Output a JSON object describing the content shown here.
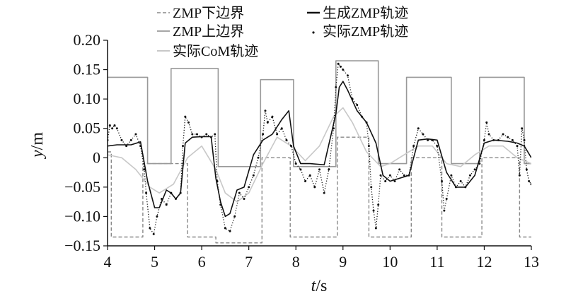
{
  "chart_data": {
    "type": "line",
    "title": "",
    "xlabel_var": "t",
    "xlabel_unit": "/s",
    "ylabel_var": "y",
    "ylabel_unit": "/m",
    "xlim": [
      4,
      13
    ],
    "ylim": [
      -0.15,
      0.2
    ],
    "xticks": [
      "4",
      "5",
      "6",
      "7",
      "8",
      "9",
      "10",
      "11",
      "12",
      "13"
    ],
    "yticks": [
      "0.20",
      "0.15",
      "0.10",
      "0.05",
      "0",
      "−0.05",
      "−0.10",
      "−0.15"
    ],
    "grid": false,
    "legend_position": "top-center",
    "series": [
      {
        "name": "ZMP下边界",
        "style": "dashed",
        "color": "#888888",
        "x": [
          4.0,
          4.08,
          4.08,
          4.75,
          4.75,
          5.7,
          5.7,
          6.3,
          6.3,
          7.28,
          7.28,
          7.88,
          7.88,
          8.88,
          8.88,
          9.55,
          9.55,
          10.45,
          10.45,
          11.1,
          11.1,
          11.95,
          11.95,
          12.75,
          12.75,
          13.0
        ],
        "y": [
          0.01,
          0.01,
          -0.135,
          -0.135,
          -0.01,
          -0.01,
          -0.135,
          -0.135,
          -0.145,
          -0.145,
          0.0,
          0.0,
          -0.135,
          -0.135,
          0.035,
          0.035,
          -0.135,
          -0.135,
          0.0,
          0.0,
          -0.135,
          -0.135,
          0.0,
          0.0,
          -0.135,
          -0.135
        ]
      },
      {
        "name": "ZMP上边界",
        "style": "solid",
        "color": "#999999",
        "x": [
          4.0,
          4.85,
          4.85,
          5.35,
          5.35,
          6.35,
          6.35,
          7.25,
          7.25,
          7.95,
          7.95,
          8.85,
          8.85,
          9.75,
          9.75,
          10.35,
          10.35,
          11.3,
          11.3,
          11.9,
          11.9,
          12.85,
          12.85,
          13.0
        ],
        "y": [
          0.137,
          0.137,
          -0.01,
          -0.01,
          0.152,
          0.152,
          -0.015,
          -0.015,
          0.133,
          0.133,
          -0.015,
          -0.015,
          0.165,
          0.165,
          -0.01,
          -0.01,
          0.137,
          0.137,
          -0.01,
          -0.01,
          0.137,
          0.137,
          -0.01,
          -0.01
        ]
      },
      {
        "name": "实际CoM轨迹",
        "style": "solid",
        "color": "#c8c8c8",
        "x": [
          4.0,
          4.3,
          4.6,
          4.9,
          5.1,
          5.4,
          5.7,
          6.0,
          6.3,
          6.5,
          6.75,
          7.0,
          7.3,
          7.6,
          7.9,
          8.2,
          8.5,
          8.8,
          9.0,
          9.2,
          9.5,
          9.8,
          10.0,
          10.3,
          10.6,
          10.9,
          11.2,
          11.5,
          11.8,
          12.1,
          12.4,
          12.7,
          13.0
        ],
        "y": [
          0.005,
          0.0,
          -0.02,
          -0.05,
          -0.06,
          -0.045,
          0.0,
          0.02,
          -0.02,
          -0.06,
          -0.075,
          -0.06,
          -0.01,
          0.035,
          0.02,
          -0.005,
          0.02,
          0.07,
          0.085,
          0.06,
          0.01,
          -0.015,
          -0.01,
          0.005,
          0.02,
          0.02,
          -0.01,
          -0.015,
          0.005,
          0.02,
          0.02,
          0.0,
          -0.01
        ]
      },
      {
        "name": "生成ZMP轨迹",
        "style": "solid",
        "color": "#111111",
        "x": [
          4.0,
          4.2,
          4.5,
          4.7,
          4.85,
          5.0,
          5.1,
          5.25,
          5.35,
          5.45,
          5.55,
          5.65,
          5.8,
          6.0,
          6.2,
          6.3,
          6.4,
          6.5,
          6.6,
          6.75,
          6.9,
          7.1,
          7.3,
          7.5,
          7.7,
          7.85,
          7.95,
          8.1,
          8.3,
          8.6,
          8.85,
          8.92,
          9.0,
          9.1,
          9.3,
          9.5,
          9.7,
          9.85,
          10.0,
          10.2,
          10.4,
          10.6,
          10.8,
          11.0,
          11.2,
          11.4,
          11.6,
          11.8,
          12.0,
          12.2,
          12.5,
          12.7,
          12.85,
          13.0
        ],
        "y": [
          0.02,
          0.022,
          0.022,
          0.027,
          -0.04,
          -0.085,
          -0.085,
          -0.055,
          -0.06,
          -0.07,
          -0.06,
          0.025,
          0.035,
          0.036,
          0.036,
          -0.035,
          -0.075,
          -0.1,
          -0.095,
          -0.055,
          -0.05,
          0.005,
          0.03,
          0.04,
          0.065,
          0.08,
          0.02,
          -0.01,
          -0.01,
          -0.012,
          0.075,
          0.12,
          0.13,
          0.115,
          0.08,
          0.06,
          0.025,
          -0.03,
          -0.04,
          -0.035,
          -0.03,
          0.03,
          0.032,
          0.03,
          -0.025,
          -0.05,
          -0.05,
          -0.03,
          0.025,
          0.03,
          0.028,
          0.025,
          0.02,
          0.0
        ]
      },
      {
        "name": "实际ZMP轨迹",
        "style": "dotted",
        "color": "#111111",
        "x": [
          4.0,
          4.05,
          4.1,
          4.15,
          4.2,
          4.3,
          4.4,
          4.5,
          4.6,
          4.7,
          4.78,
          4.82,
          4.9,
          4.98,
          5.05,
          5.15,
          5.25,
          5.35,
          5.45,
          5.55,
          5.6,
          5.65,
          5.72,
          5.8,
          5.9,
          6.0,
          6.1,
          6.2,
          6.28,
          6.33,
          6.4,
          6.5,
          6.6,
          6.7,
          6.8,
          6.9,
          7.0,
          7.1,
          7.2,
          7.3,
          7.35,
          7.4,
          7.5,
          7.6,
          7.7,
          7.8,
          7.9,
          8.0,
          8.1,
          8.2,
          8.3,
          8.4,
          8.5,
          8.6,
          8.7,
          8.8,
          8.85,
          8.9,
          8.95,
          9.0,
          9.1,
          9.2,
          9.3,
          9.4,
          9.5,
          9.55,
          9.6,
          9.65,
          9.7,
          9.75,
          9.8,
          9.9,
          10.0,
          10.1,
          10.2,
          10.3,
          10.4,
          10.5,
          10.6,
          10.7,
          10.8,
          10.9,
          11.0,
          11.1,
          11.15,
          11.2,
          11.3,
          11.4,
          11.5,
          11.6,
          11.7,
          11.8,
          11.9,
          12.0,
          12.05,
          12.1,
          12.2,
          12.3,
          12.4,
          12.5,
          12.6,
          12.7,
          12.75,
          12.8,
          12.85,
          12.9,
          12.95,
          13.0
        ],
        "y": [
          0.03,
          0.055,
          0.05,
          0.055,
          0.05,
          0.03,
          0.02,
          0.03,
          0.04,
          0.02,
          -0.02,
          -0.06,
          -0.12,
          -0.13,
          -0.1,
          -0.07,
          -0.08,
          -0.06,
          -0.07,
          -0.06,
          0.02,
          0.07,
          0.06,
          0.04,
          0.04,
          0.035,
          0.04,
          0.035,
          0.04,
          -0.04,
          -0.08,
          -0.12,
          -0.125,
          -0.1,
          -0.06,
          -0.07,
          -0.05,
          -0.03,
          0.0,
          0.04,
          0.08,
          0.06,
          0.07,
          0.04,
          0.05,
          0.03,
          0.02,
          -0.01,
          -0.02,
          -0.04,
          -0.03,
          -0.05,
          -0.02,
          -0.06,
          -0.02,
          0.05,
          0.12,
          0.16,
          0.155,
          0.15,
          0.14,
          0.1,
          0.09,
          0.07,
          0.06,
          0.02,
          -0.05,
          -0.09,
          -0.12,
          -0.08,
          -0.03,
          -0.04,
          -0.03,
          -0.04,
          -0.02,
          -0.03,
          -0.03,
          0.02,
          0.05,
          0.04,
          0.03,
          0.03,
          0.02,
          -0.04,
          -0.09,
          -0.07,
          -0.03,
          -0.05,
          -0.04,
          -0.05,
          -0.03,
          -0.02,
          -0.01,
          0.03,
          0.06,
          0.04,
          0.03,
          0.03,
          0.04,
          0.035,
          0.03,
          0.02,
          -0.03,
          0.05,
          0.03,
          -0.02,
          -0.04,
          -0.045
        ]
      }
    ]
  }
}
